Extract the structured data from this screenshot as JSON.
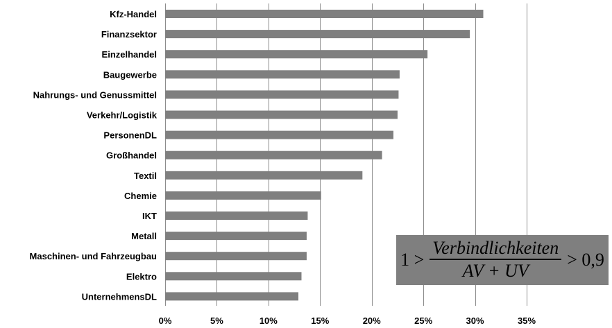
{
  "chart_data": {
    "type": "bar",
    "orientation": "horizontal",
    "categories": [
      "Kfz-Handel",
      "Finanzsektor",
      "Einzelhandel",
      "Baugewerbe",
      "Nahrungs- und Genussmittel",
      "Verkehr/Logistik",
      "PersonenDL",
      "Großhandel",
      "Textil",
      "Chemie",
      "IKT",
      "Metall",
      "Maschinen- und Fahrzeugbau",
      "Elektro",
      "UnternehmensDL"
    ],
    "values": [
      30.8,
      29.5,
      25.4,
      22.7,
      22.6,
      22.5,
      22.1,
      21.0,
      19.1,
      15.1,
      13.8,
      13.7,
      13.7,
      13.2,
      12.9
    ],
    "x_ticks": [
      "0%",
      "5%",
      "10%",
      "15%",
      "20%",
      "25%",
      "30%",
      "35%"
    ],
    "xlim": [
      0,
      35
    ],
    "grid": true,
    "bar_color": "#7f7f7f",
    "title": "",
    "xlabel": "",
    "ylabel": ""
  },
  "annotation": {
    "lhs": "1 >",
    "numerator": "Verbindlichkeiten",
    "denominator": "AV + UV",
    "rhs": "> 0,9"
  }
}
